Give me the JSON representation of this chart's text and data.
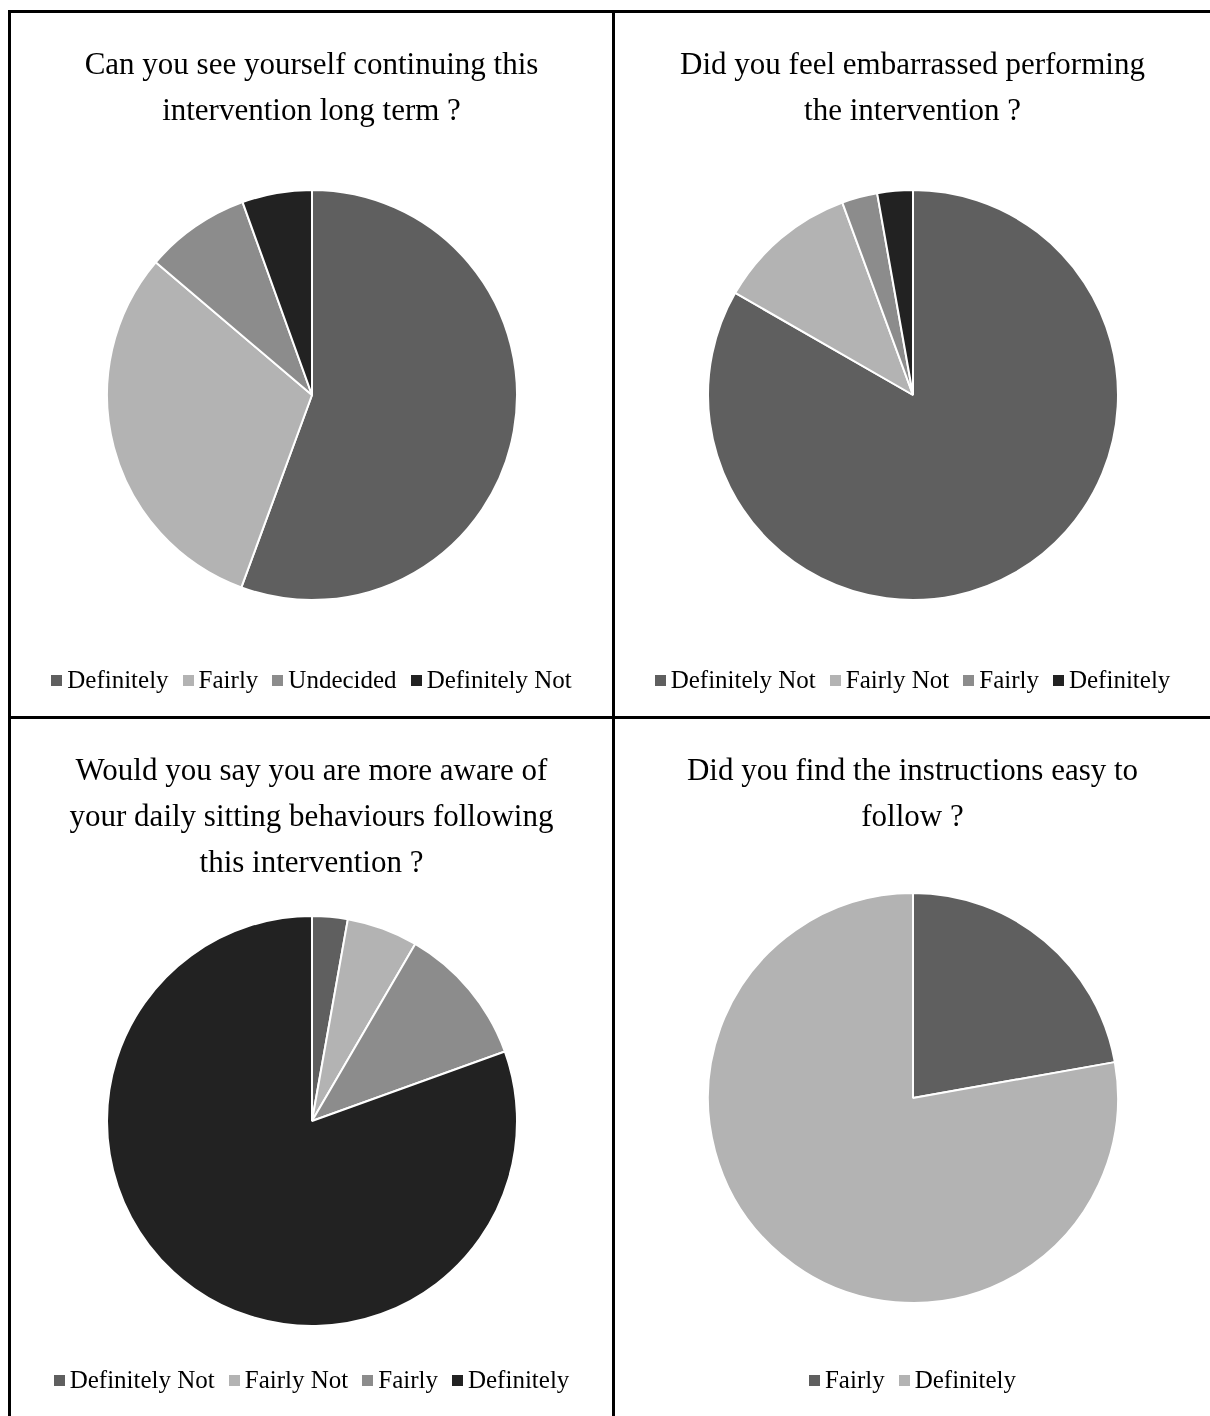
{
  "chart_data": [
    {
      "type": "pie",
      "title": "Can you see yourself continuing this intervention long term ?",
      "categories": [
        "Definitely",
        "Fairly",
        "Undecided",
        "Definitely Not"
      ],
      "values": [
        55.6,
        30.6,
        8.3,
        5.5
      ],
      "colors": [
        "#5f5f5f",
        "#b3b3b3",
        "#8c8c8c",
        "#222222"
      ],
      "legend": "bottom"
    },
    {
      "type": "pie",
      "title": "Did you feel embarrassed performing the intervention ?",
      "categories": [
        "Definitely Not",
        "Fairly Not",
        "Fairly",
        "Definitely"
      ],
      "values": [
        83.3,
        11.1,
        2.8,
        2.8
      ],
      "colors": [
        "#5f5f5f",
        "#b3b3b3",
        "#8c8c8c",
        "#222222"
      ],
      "legend": "bottom"
    },
    {
      "type": "pie",
      "title": "Would you say you are more aware of your daily sitting behaviours following this intervention ?",
      "categories": [
        "Definitely Not",
        "Fairly Not",
        "Fairly",
        "Definitely"
      ],
      "values": [
        2.8,
        5.6,
        11.1,
        80.5
      ],
      "colors": [
        "#5f5f5f",
        "#b3b3b3",
        "#8c8c8c",
        "#222222"
      ],
      "legend": "bottom"
    },
    {
      "type": "pie",
      "title": "Did you find the instructions easy to follow ?",
      "categories": [
        "Fairly",
        "Definitely"
      ],
      "values": [
        22.2,
        77.8
      ],
      "colors": [
        "#5f5f5f",
        "#b3b3b3"
      ],
      "legend": "bottom"
    }
  ]
}
